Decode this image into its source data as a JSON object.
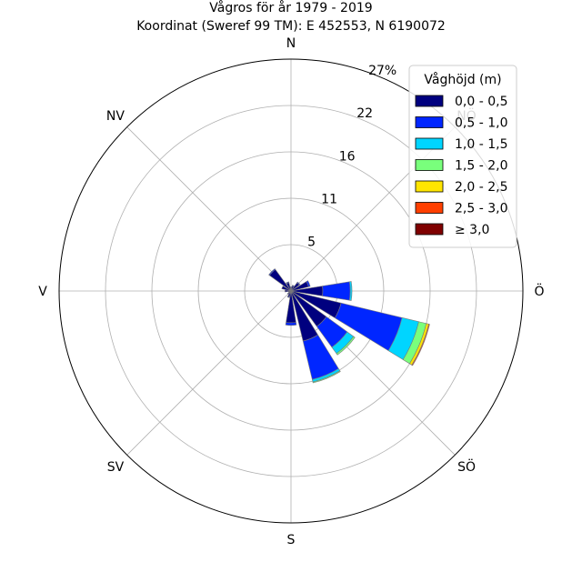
{
  "chart_data": {
    "type": "wind-rose",
    "title": "Vågros för år 1979 - 2019",
    "subtitle": "Koordinat (Sweref 99 TM): E 452553, N 6190072",
    "directions": [
      "N",
      "NNÖ",
      "NÖ",
      "ÖNÖ",
      "Ö",
      "ÖSÖ",
      "SÖ",
      "SSÖ",
      "S",
      "SSV",
      "SV",
      "VSV",
      "V",
      "VNV",
      "NV",
      "NNV"
    ],
    "direction_labels": [
      "N",
      "NV",
      "V",
      "SV",
      "S",
      "SÖ",
      "Ö",
      "NÖ"
    ],
    "radial_ticks": [
      "5",
      "11",
      "16",
      "22",
      "27%"
    ],
    "radial_tick_values": [
      5.4,
      10.8,
      16.2,
      21.6,
      27
    ],
    "rmax": 27,
    "legend": {
      "title": "Våghöjd (m)",
      "placement": "upper-right",
      "bins": [
        "0,0 - 0,5",
        "0,5 - 1,0",
        "1,0 - 1,5",
        "1,5 - 2,0",
        "2,0 - 2,5",
        "2,5 - 3,0",
        "≥ 3,0"
      ]
    },
    "colors": [
      "#00007f",
      "#0026ff",
      "#00d5ff",
      "#79ff7c",
      "#ffe500",
      "#ff3f00",
      "#7f0000"
    ],
    "series": [
      {
        "name": "0,0 - 0,5",
        "values": [
          0.4,
          0.6,
          1.2,
          2.1,
          3.7,
          6.0,
          5.1,
          6.0,
          3.7,
          0.7,
          0.4,
          0.3,
          0.7,
          1.1,
          3.1,
          1.0
        ]
      },
      {
        "name": "0,5 - 1,0",
        "values": [
          0.1,
          0.1,
          0.1,
          0.2,
          3.2,
          7.3,
          3.0,
          4.6,
          0.3,
          0.1,
          0.1,
          0.0,
          0.0,
          0.0,
          0.1,
          0.1
        ]
      },
      {
        "name": "1,0 - 1,5",
        "values": [
          0.0,
          0.0,
          0.0,
          0.0,
          0.2,
          2.0,
          0.9,
          0.3,
          0.0,
          0.0,
          0.0,
          0.0,
          0.0,
          0.0,
          0.0,
          0.0
        ]
      },
      {
        "name": "1,5 - 2,0",
        "values": [
          0.0,
          0.0,
          0.0,
          0.0,
          0.0,
          0.9,
          0.2,
          0.1,
          0.0,
          0.0,
          0.0,
          0.0,
          0.0,
          0.0,
          0.0,
          0.0
        ]
      },
      {
        "name": "2,0 - 2,5",
        "values": [
          0.0,
          0.0,
          0.0,
          0.0,
          0.0,
          0.3,
          0.0,
          0.0,
          0.0,
          0.0,
          0.0,
          0.0,
          0.0,
          0.0,
          0.0,
          0.0
        ]
      },
      {
        "name": "2,5 - 3,0",
        "values": [
          0.0,
          0.0,
          0.0,
          0.0,
          0.0,
          0.1,
          0.0,
          0.0,
          0.0,
          0.0,
          0.0,
          0.0,
          0.0,
          0.0,
          0.0,
          0.0
        ]
      },
      {
        "name": "≥ 3,0",
        "values": [
          0.0,
          0.0,
          0.0,
          0.0,
          0.0,
          0.0,
          0.0,
          0.0,
          0.0,
          0.0,
          0.0,
          0.0,
          0.0,
          0.0,
          0.0,
          0.0
        ]
      }
    ],
    "grid": true
  }
}
